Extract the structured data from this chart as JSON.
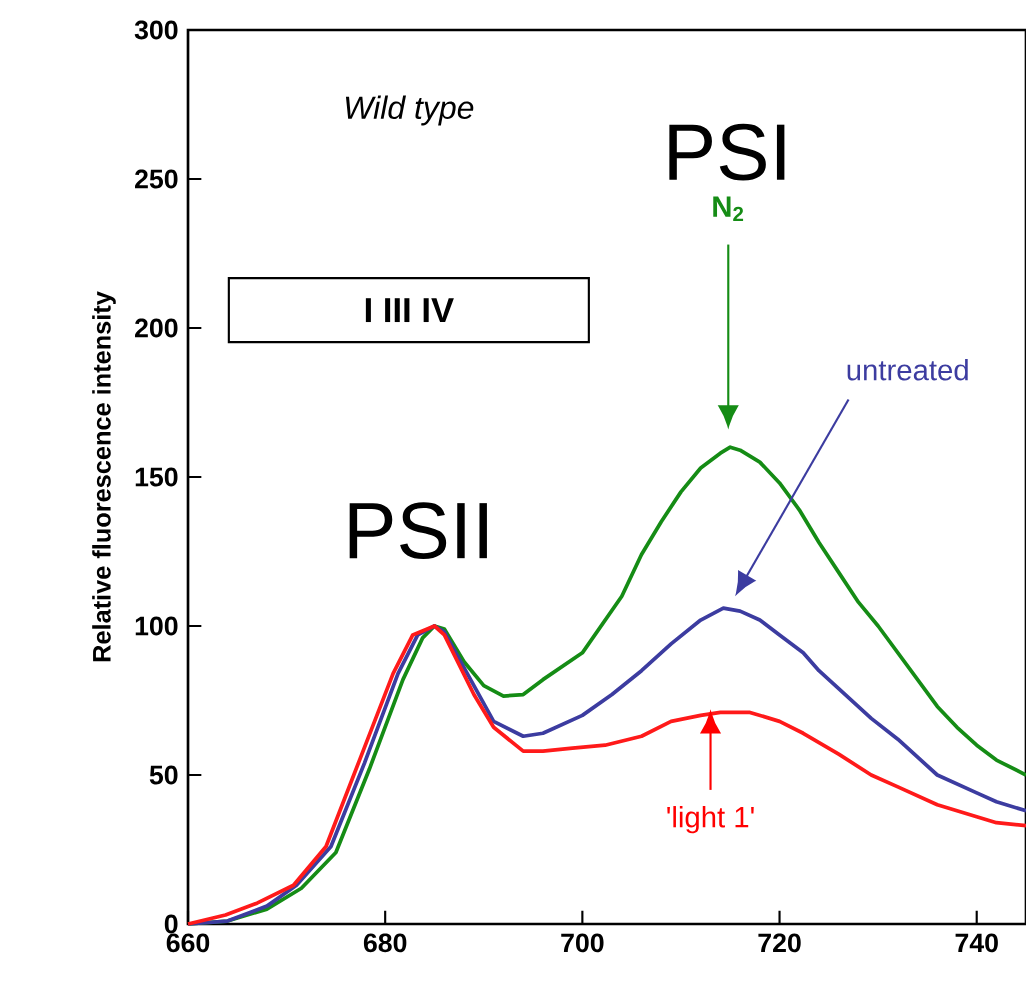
{
  "chart_data": {
    "type": "line",
    "xlabel": null,
    "ylabel": "Relative fluorescence intensity",
    "xlim": [
      660,
      745
    ],
    "ylim": [
      0,
      300
    ],
    "xticks": [
      660,
      680,
      700,
      720,
      740
    ],
    "yticks": [
      0,
      50,
      100,
      150,
      200,
      250,
      300
    ],
    "grid": false,
    "marker": "none",
    "line_style": "solid",
    "annotations": [
      "Wild type",
      "I   III   IV",
      "PSI",
      "PSII"
    ],
    "series": [
      {
        "name": "N$_{2}$",
        "color": "#158c15",
        "x": [
          660,
          664,
          668,
          671.5,
          675,
          678.4,
          681.8,
          683.8,
          685,
          686,
          688,
          690,
          692,
          694,
          696,
          700,
          704,
          706,
          708,
          710,
          712,
          714,
          715,
          716,
          718,
          720,
          722,
          724,
          726,
          728,
          730,
          732,
          734,
          736,
          738,
          740,
          742,
          745
        ],
        "values": [
          0,
          1,
          5,
          12,
          24,
          52,
          82,
          96,
          100,
          99,
          88,
          80,
          76.5,
          77,
          82,
          91,
          110,
          124,
          135,
          145,
          153,
          158,
          160,
          159,
          155,
          148,
          139,
          128,
          118,
          108,
          100,
          91,
          82,
          73,
          66,
          60,
          55,
          50
        ]
      },
      {
        "name": "untreated",
        "color": "#3c3ca0",
        "x": [
          660,
          664,
          668,
          671,
          674.5,
          677.9,
          681.3,
          683.3,
          685,
          686,
          689,
          691,
          694,
          696,
          700,
          703,
          706,
          709,
          712,
          714.3,
          716,
          718,
          720,
          722.4,
          724,
          726,
          729.3,
          732,
          736,
          740,
          742,
          745
        ],
        "values": [
          0,
          1,
          6,
          13,
          26,
          54,
          84,
          97,
          100,
          98,
          80,
          68,
          63,
          64,
          70,
          77,
          85,
          94,
          102,
          106,
          105,
          102,
          97,
          91,
          85,
          79,
          69,
          62,
          50,
          44,
          41,
          38
        ]
      },
      {
        "name": "'light 1'",
        "color": "#ff1a1a",
        "x": [
          660,
          663.8,
          667,
          670.7,
          674,
          677.4,
          680.8,
          682.8,
          685,
          686,
          689,
          691,
          694,
          696,
          699,
          702.3,
          706,
          709,
          712,
          714,
          717,
          720,
          722.4,
          726,
          729.3,
          732,
          736,
          740,
          742,
          745
        ],
        "values": [
          0,
          3,
          7,
          13,
          26,
          55,
          84,
          97,
          100,
          97,
          77,
          66,
          58,
          58,
          59,
          60,
          63,
          68,
          70,
          71,
          71,
          68,
          64,
          57,
          50,
          46,
          40,
          36,
          34,
          33
        ]
      }
    ]
  }
}
